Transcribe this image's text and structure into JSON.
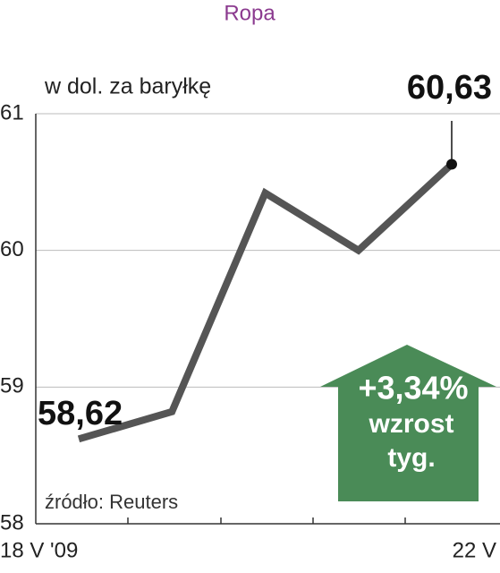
{
  "chart_data": {
    "type": "line",
    "title": "Ropa",
    "subtitle": "w dol. za baryłkę",
    "categories": [
      "18 V '09",
      null,
      null,
      null,
      "22 V"
    ],
    "values": [
      58.62,
      58.82,
      60.42,
      60.0,
      60.63
    ],
    "value_labels": [
      "58,62",
      null,
      null,
      null,
      "60,63"
    ],
    "color": "#555555",
    "ylim": [
      58,
      61
    ],
    "yticks": [
      58,
      59,
      60,
      61
    ],
    "grid": true,
    "annotation": {
      "change": "+3,34%",
      "line1": "wzrost",
      "line2": "tyg."
    },
    "source": "źródło: Reuters"
  }
}
